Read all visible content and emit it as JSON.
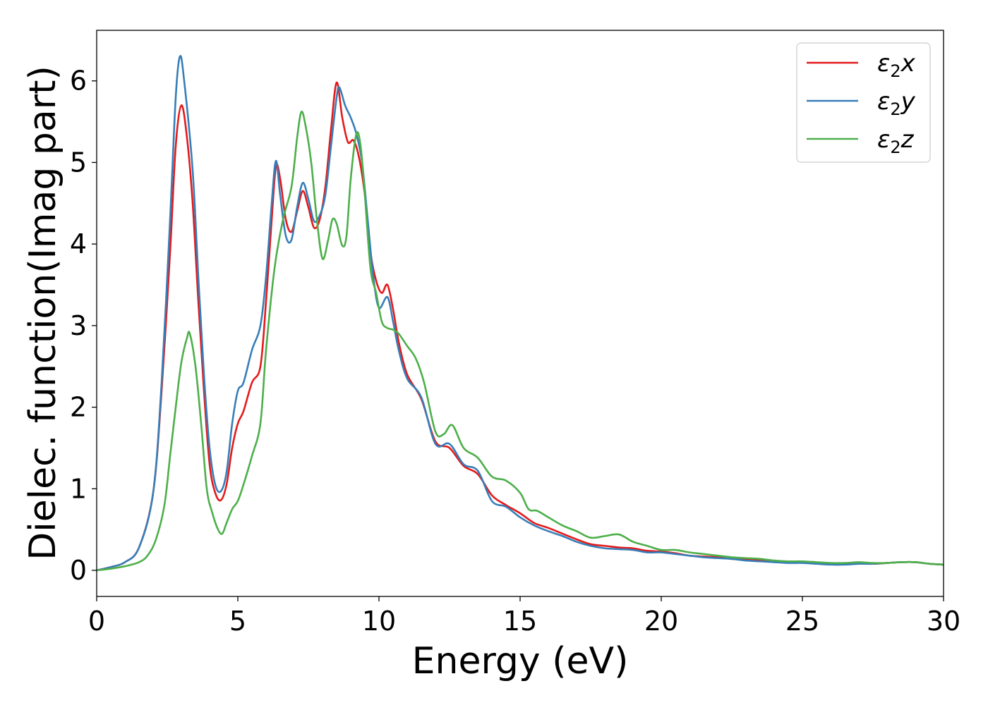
{
  "chart_data": {
    "type": "line",
    "xlabel": "Energy (eV)",
    "ylabel": "Dielec. function(Imag part)",
    "xlim": [
      0,
      30
    ],
    "ylim": [
      -0.32,
      6.62
    ],
    "xticks": [
      0,
      5,
      10,
      15,
      20,
      25,
      30
    ],
    "yticks": [
      0,
      1,
      2,
      3,
      4,
      5,
      6
    ],
    "grid": false,
    "legend_position": "top-right",
    "series": [
      {
        "name": "ε2x",
        "legend": {
          "base": "ε",
          "sub": "2",
          "suffix": "x"
        },
        "color": "#e41a1c",
        "points": [
          [
            0,
            0
          ],
          [
            0.5,
            0.04
          ],
          [
            1,
            0.1
          ],
          [
            1.5,
            0.28
          ],
          [
            2,
            0.95
          ],
          [
            2.3,
            2.2
          ],
          [
            2.6,
            3.9
          ],
          [
            2.8,
            5.2
          ],
          [
            3.0,
            5.7
          ],
          [
            3.2,
            5.3
          ],
          [
            3.4,
            4.5
          ],
          [
            3.6,
            3.3
          ],
          [
            3.8,
            2.2
          ],
          [
            4.0,
            1.3
          ],
          [
            4.2,
            0.95
          ],
          [
            4.4,
            0.86
          ],
          [
            4.6,
            1.05
          ],
          [
            4.8,
            1.5
          ],
          [
            5.0,
            1.8
          ],
          [
            5.2,
            1.95
          ],
          [
            5.5,
            2.3
          ],
          [
            5.8,
            2.5
          ],
          [
            6.0,
            3.3
          ],
          [
            6.2,
            4.3
          ],
          [
            6.35,
            4.95
          ],
          [
            6.5,
            4.8
          ],
          [
            6.7,
            4.3
          ],
          [
            6.9,
            4.15
          ],
          [
            7.1,
            4.4
          ],
          [
            7.3,
            4.65
          ],
          [
            7.5,
            4.45
          ],
          [
            7.7,
            4.2
          ],
          [
            7.9,
            4.3
          ],
          [
            8.1,
            4.7
          ],
          [
            8.3,
            5.4
          ],
          [
            8.5,
            5.98
          ],
          [
            8.7,
            5.55
          ],
          [
            8.9,
            5.25
          ],
          [
            9.1,
            5.27
          ],
          [
            9.3,
            5.05
          ],
          [
            9.5,
            4.6
          ],
          [
            9.7,
            3.9
          ],
          [
            9.9,
            3.55
          ],
          [
            10.1,
            3.4
          ],
          [
            10.3,
            3.5
          ],
          [
            10.5,
            3.2
          ],
          [
            10.7,
            2.8
          ],
          [
            11.0,
            2.4
          ],
          [
            11.5,
            2.1
          ],
          [
            12,
            1.58
          ],
          [
            12.5,
            1.5
          ],
          [
            13,
            1.28
          ],
          [
            13.5,
            1.18
          ],
          [
            14,
            0.92
          ],
          [
            14.5,
            0.8
          ],
          [
            15,
            0.7
          ],
          [
            15.5,
            0.58
          ],
          [
            16,
            0.52
          ],
          [
            16.5,
            0.45
          ],
          [
            17,
            0.38
          ],
          [
            17.5,
            0.32
          ],
          [
            18,
            0.3
          ],
          [
            18.5,
            0.28
          ],
          [
            19,
            0.27
          ],
          [
            19.5,
            0.24
          ],
          [
            20,
            0.23
          ],
          [
            20.5,
            0.21
          ],
          [
            21,
            0.18
          ],
          [
            21.5,
            0.17
          ],
          [
            22,
            0.16
          ],
          [
            22.5,
            0.14
          ],
          [
            23,
            0.13
          ],
          [
            23.5,
            0.12
          ],
          [
            24,
            0.11
          ],
          [
            24.5,
            0.1
          ],
          [
            25,
            0.1
          ],
          [
            25.5,
            0.09
          ],
          [
            26,
            0.08
          ],
          [
            26.5,
            0.08
          ],
          [
            27,
            0.09
          ],
          [
            27.5,
            0.08
          ],
          [
            28,
            0.09
          ],
          [
            28.5,
            0.1
          ],
          [
            29,
            0.1
          ],
          [
            29.5,
            0.08
          ],
          [
            30,
            0.07
          ]
        ]
      },
      {
        "name": "ε2y",
        "legend": {
          "base": "ε",
          "sub": "2",
          "suffix": "y"
        },
        "color": "#377eb8",
        "points": [
          [
            0,
            0
          ],
          [
            0.5,
            0.04
          ],
          [
            1,
            0.1
          ],
          [
            1.5,
            0.28
          ],
          [
            2,
            0.95
          ],
          [
            2.3,
            2.3
          ],
          [
            2.6,
            4.3
          ],
          [
            2.8,
            5.8
          ],
          [
            2.95,
            6.3
          ],
          [
            3.1,
            6.0
          ],
          [
            3.4,
            4.9
          ],
          [
            3.6,
            3.6
          ],
          [
            3.8,
            2.4
          ],
          [
            4.0,
            1.5
          ],
          [
            4.2,
            1.05
          ],
          [
            4.4,
            0.97
          ],
          [
            4.6,
            1.2
          ],
          [
            4.8,
            1.8
          ],
          [
            5.0,
            2.2
          ],
          [
            5.2,
            2.3
          ],
          [
            5.5,
            2.7
          ],
          [
            5.8,
            3.0
          ],
          [
            6.0,
            3.6
          ],
          [
            6.2,
            4.5
          ],
          [
            6.35,
            5.02
          ],
          [
            6.5,
            4.6
          ],
          [
            6.7,
            4.1
          ],
          [
            6.9,
            4.05
          ],
          [
            7.1,
            4.45
          ],
          [
            7.3,
            4.75
          ],
          [
            7.5,
            4.55
          ],
          [
            7.7,
            4.28
          ],
          [
            7.9,
            4.35
          ],
          [
            8.1,
            4.6
          ],
          [
            8.3,
            5.2
          ],
          [
            8.5,
            5.8
          ],
          [
            8.6,
            5.92
          ],
          [
            8.8,
            5.7
          ],
          [
            9.0,
            5.55
          ],
          [
            9.2,
            5.35
          ],
          [
            9.4,
            5.0
          ],
          [
            9.6,
            4.3
          ],
          [
            9.8,
            3.6
          ],
          [
            10.0,
            3.22
          ],
          [
            10.3,
            3.35
          ],
          [
            10.5,
            3.05
          ],
          [
            10.7,
            2.7
          ],
          [
            11,
            2.35
          ],
          [
            11.5,
            2.12
          ],
          [
            12,
            1.55
          ],
          [
            12.5,
            1.55
          ],
          [
            13,
            1.3
          ],
          [
            13.5,
            1.22
          ],
          [
            14,
            0.85
          ],
          [
            14.5,
            0.78
          ],
          [
            15,
            0.65
          ],
          [
            15.5,
            0.55
          ],
          [
            16,
            0.48
          ],
          [
            16.5,
            0.42
          ],
          [
            17,
            0.35
          ],
          [
            17.5,
            0.3
          ],
          [
            18,
            0.27
          ],
          [
            18.5,
            0.26
          ],
          [
            19,
            0.25
          ],
          [
            19.5,
            0.22
          ],
          [
            20,
            0.22
          ],
          [
            20.5,
            0.2
          ],
          [
            21,
            0.18
          ],
          [
            21.5,
            0.16
          ],
          [
            22,
            0.15
          ],
          [
            22.5,
            0.14
          ],
          [
            23,
            0.12
          ],
          [
            23.5,
            0.11
          ],
          [
            24,
            0.1
          ],
          [
            24.5,
            0.09
          ],
          [
            25,
            0.09
          ],
          [
            25.5,
            0.08
          ],
          [
            26,
            0.07
          ],
          [
            26.5,
            0.07
          ],
          [
            27,
            0.08
          ],
          [
            27.5,
            0.08
          ],
          [
            28,
            0.09
          ],
          [
            28.5,
            0.1
          ],
          [
            29,
            0.1
          ],
          [
            29.5,
            0.08
          ],
          [
            30,
            0.07
          ]
        ]
      },
      {
        "name": "ε2z",
        "legend": {
          "base": "ε",
          "sub": "2",
          "suffix": "z"
        },
        "color": "#4daf4a",
        "points": [
          [
            0,
            0
          ],
          [
            0.5,
            0.02
          ],
          [
            1,
            0.05
          ],
          [
            1.5,
            0.1
          ],
          [
            1.8,
            0.18
          ],
          [
            2.1,
            0.38
          ],
          [
            2.4,
            0.8
          ],
          [
            2.6,
            1.4
          ],
          [
            2.8,
            2.0
          ],
          [
            3.0,
            2.55
          ],
          [
            3.2,
            2.85
          ],
          [
            3.3,
            2.9
          ],
          [
            3.5,
            2.5
          ],
          [
            3.7,
            1.8
          ],
          [
            3.9,
            1.0
          ],
          [
            4.1,
            0.7
          ],
          [
            4.3,
            0.5
          ],
          [
            4.45,
            0.45
          ],
          [
            4.6,
            0.58
          ],
          [
            4.8,
            0.75
          ],
          [
            5.0,
            0.85
          ],
          [
            5.2,
            1.05
          ],
          [
            5.5,
            1.4
          ],
          [
            5.8,
            1.8
          ],
          [
            6.0,
            2.7
          ],
          [
            6.3,
            3.7
          ],
          [
            6.6,
            4.3
          ],
          [
            6.9,
            4.7
          ],
          [
            7.1,
            5.3
          ],
          [
            7.25,
            5.62
          ],
          [
            7.4,
            5.45
          ],
          [
            7.6,
            5.0
          ],
          [
            7.8,
            4.3
          ],
          [
            8.0,
            3.82
          ],
          [
            8.2,
            4.05
          ],
          [
            8.35,
            4.3
          ],
          [
            8.5,
            4.25
          ],
          [
            8.7,
            3.98
          ],
          [
            8.85,
            4.1
          ],
          [
            9.0,
            4.8
          ],
          [
            9.2,
            5.35
          ],
          [
            9.35,
            5.2
          ],
          [
            9.5,
            4.6
          ],
          [
            9.7,
            3.7
          ],
          [
            9.9,
            3.4
          ],
          [
            10.1,
            3.05
          ],
          [
            10.3,
            2.97
          ],
          [
            10.5,
            2.95
          ],
          [
            10.7,
            2.9
          ],
          [
            11,
            2.75
          ],
          [
            11.3,
            2.6
          ],
          [
            11.6,
            2.3
          ],
          [
            12,
            1.7
          ],
          [
            12.3,
            1.67
          ],
          [
            12.6,
            1.78
          ],
          [
            13,
            1.5
          ],
          [
            13.5,
            1.38
          ],
          [
            14,
            1.15
          ],
          [
            14.5,
            1.1
          ],
          [
            15,
            0.95
          ],
          [
            15.3,
            0.75
          ],
          [
            15.6,
            0.73
          ],
          [
            16,
            0.65
          ],
          [
            16.5,
            0.55
          ],
          [
            17,
            0.48
          ],
          [
            17.5,
            0.4
          ],
          [
            18,
            0.42
          ],
          [
            18.5,
            0.44
          ],
          [
            19,
            0.35
          ],
          [
            19.5,
            0.3
          ],
          [
            20,
            0.25
          ],
          [
            20.5,
            0.25
          ],
          [
            21,
            0.22
          ],
          [
            21.5,
            0.2
          ],
          [
            22,
            0.18
          ],
          [
            22.5,
            0.16
          ],
          [
            23,
            0.15
          ],
          [
            23.5,
            0.14
          ],
          [
            24,
            0.12
          ],
          [
            24.5,
            0.11
          ],
          [
            25,
            0.11
          ],
          [
            25.5,
            0.1
          ],
          [
            26,
            0.09
          ],
          [
            26.5,
            0.09
          ],
          [
            27,
            0.1
          ],
          [
            27.5,
            0.09
          ],
          [
            28,
            0.09
          ],
          [
            28.5,
            0.1
          ],
          [
            29,
            0.1
          ],
          [
            29.5,
            0.08
          ],
          [
            30,
            0.07
          ]
        ]
      }
    ]
  }
}
